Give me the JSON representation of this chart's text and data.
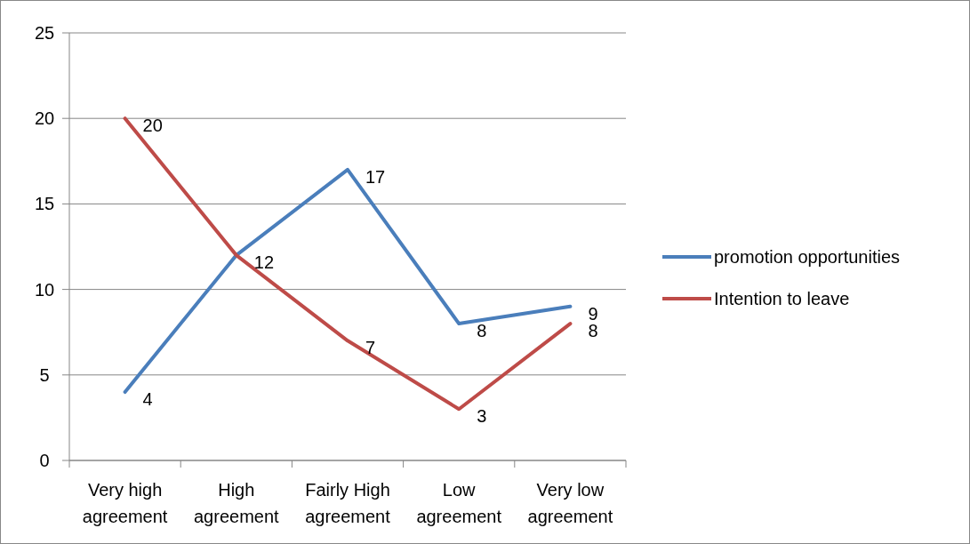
{
  "chart_data": {
    "type": "line",
    "categories": [
      "Very high agreement",
      "High agreement",
      "Fairly High agreement",
      "Low agreement",
      "Very low agreement"
    ],
    "series": [
      {
        "name": "promotion opportunities",
        "color": "#4a7ebb",
        "values": [
          4,
          12,
          17,
          8,
          9
        ],
        "value_labels": [
          "4",
          "12",
          "17",
          "8",
          "9"
        ]
      },
      {
        "name": "Intention to leave",
        "color": "#be4b48",
        "values": [
          20,
          12,
          7,
          3,
          8
        ],
        "value_labels": [
          "20",
          null,
          "7",
          "3",
          "8"
        ]
      }
    ],
    "ylim": [
      0,
      25
    ],
    "yticks": [
      0,
      5,
      10,
      15,
      20,
      25
    ],
    "grid": "y",
    "legend": "right",
    "marker": "none",
    "line_style": "solid"
  }
}
